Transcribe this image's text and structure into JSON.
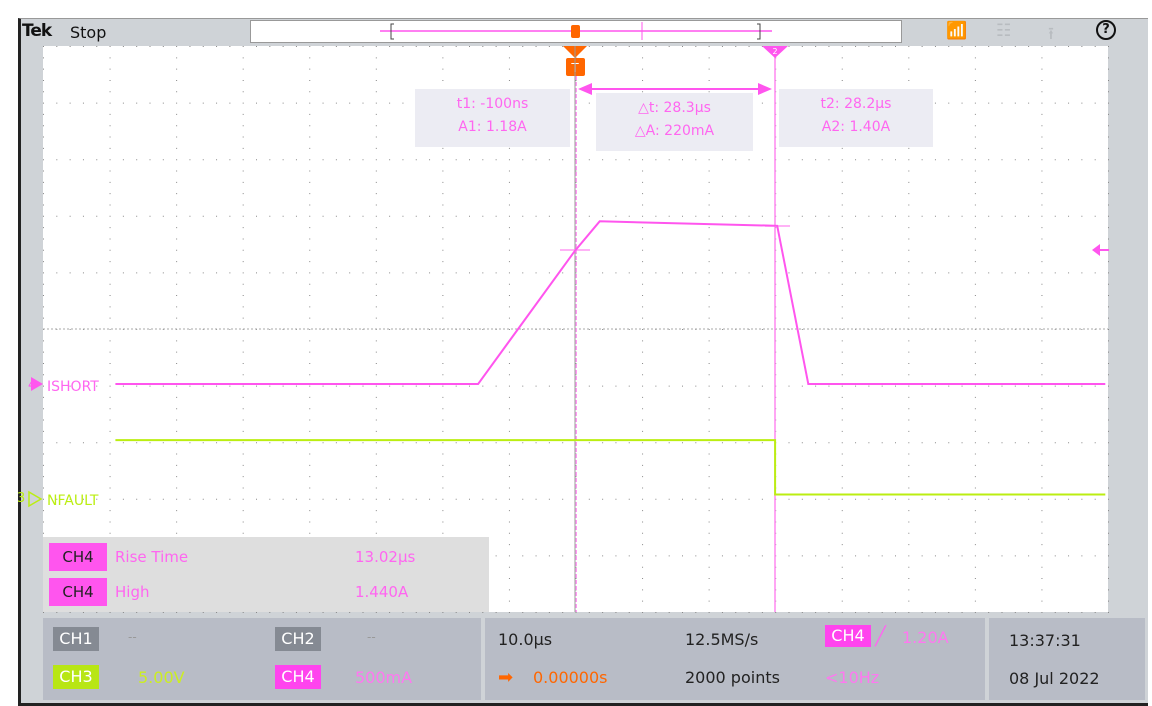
{
  "header": {
    "brand": "Tek",
    "run_state": "Stop",
    "icons": [
      "wifi-icon",
      "network-icon",
      "export-icon",
      "help-icon"
    ]
  },
  "channels": {
    "ch4": {
      "number": "4",
      "label": "ISHORT",
      "color": "#ff55ee"
    },
    "ch3": {
      "number": "3",
      "label": "NFAULT",
      "color": "#bbee11"
    }
  },
  "cursors": {
    "t1": "t1: -100ns",
    "a1": "A1: 1.18A",
    "dt": "△t: 28.3µs",
    "da": "△A: 220mA",
    "t2": "t2: 28.2µs",
    "a2": "A2: 1.40A",
    "cursor2_marker": "2"
  },
  "measurements": [
    {
      "channel": "CH4",
      "name": "Rise Time",
      "value": "13.02µs"
    },
    {
      "channel": "CH4",
      "name": "High",
      "value": "1.440A"
    }
  ],
  "bottom": {
    "ch1": {
      "label": "CH1",
      "value": "--"
    },
    "ch2": {
      "label": "CH2",
      "value": "--"
    },
    "ch3": {
      "label": "CH3",
      "value": "5.00V"
    },
    "ch4": {
      "label": "CH4",
      "value": "500mA"
    },
    "horizontal": {
      "scale": "10.0µs",
      "position": "0.00000s",
      "sample_rate": "12.5MS/s",
      "record_length": "2000 points"
    },
    "trigger": {
      "source": "CH4",
      "slope": "rising",
      "level": "1.20A",
      "frequency": "<10Hz"
    },
    "time": "13:37:31",
    "date": "08 Jul 2022"
  },
  "colors": {
    "ch3": "#bbee11",
    "ch4": "#ff55ee",
    "trigger": "#ff6600",
    "background": "#cfd3d7"
  },
  "chart_data": {
    "type": "line",
    "xlabel": "",
    "ylabel": "",
    "series": [
      {
        "name": "ISHORT",
        "unit_x": "µs",
        "unit_y": "A",
        "x": [
          -65,
          -13.7,
          0,
          3.5,
          28.6,
          33,
          75
        ],
        "y": [
          0.0,
          0.0,
          1.18,
          1.44,
          1.4,
          0.0,
          0.0
        ]
      },
      {
        "name": "NFAULT",
        "unit_x": "µs",
        "unit_y": "V",
        "x": [
          -65,
          28.3,
          28.3,
          75
        ],
        "y": [
          5.2,
          5.2,
          0.4,
          0.4
        ]
      }
    ]
  }
}
